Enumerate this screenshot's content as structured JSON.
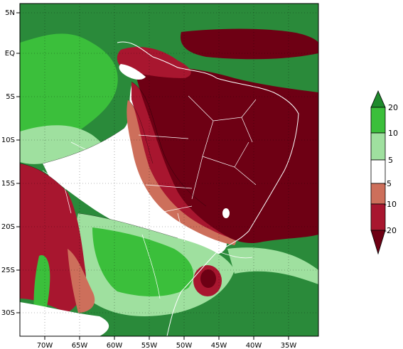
{
  "map": {
    "lat_labels": [
      "5N",
      "EQ",
      "5S",
      "10S",
      "15S",
      "20S",
      "25S",
      "30S"
    ],
    "lon_labels": [
      "70W",
      "65W",
      "60W",
      "55W",
      "50W",
      "45W",
      "40W",
      "35W"
    ],
    "extent": {
      "lon_min": -73.5,
      "lon_max": -31.5,
      "lat_min": -33.5,
      "lat_max": 7.5
    }
  },
  "colorbar": {
    "labels": [
      "20",
      "10",
      "5",
      "-5",
      "-10",
      "-20"
    ],
    "colors": {
      "above_20": "#1f8a2c",
      "10_to_20": "#3bbf3b",
      "5_to_10": "#9fe09f",
      "minus5_to_5": "#ffffff",
      "minus10_to_minus5": "#cd6f5b",
      "minus20_to_minus10": "#a8162f",
      "below_minus20": "#6e0014"
    }
  },
  "colors": {
    "ocean": "#2a8a3a",
    "frame": "#000000",
    "coast": "#ffffff"
  }
}
